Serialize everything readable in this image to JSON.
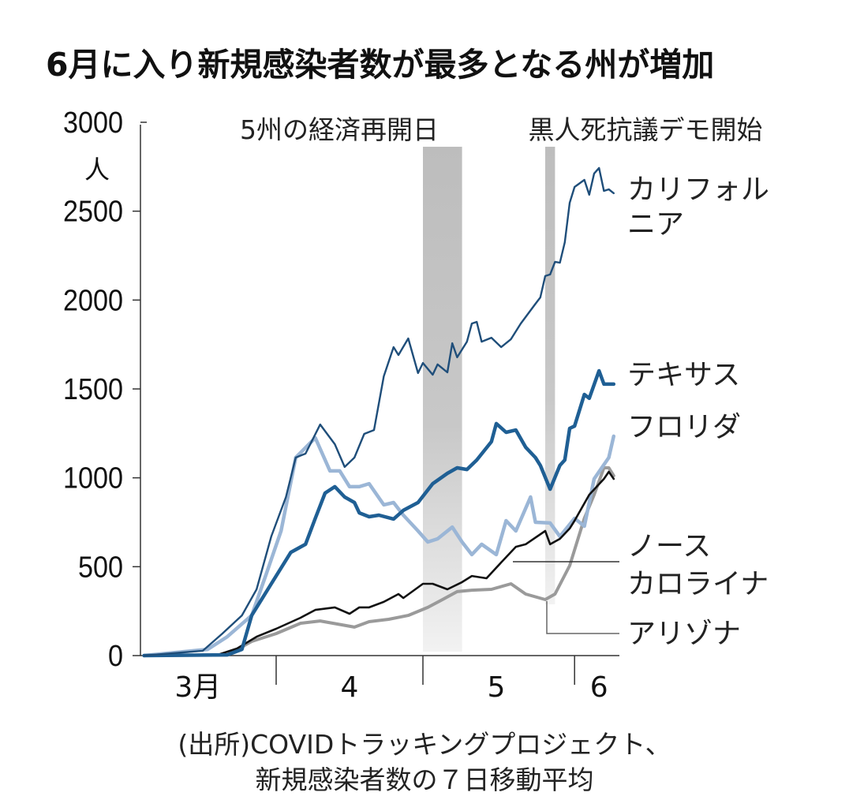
{
  "chart_data": {
    "type": "line",
    "title": "6月に入り新規感染者数が最多となる州が増加",
    "ylabel": "人",
    "ylim": [
      0,
      3000
    ],
    "yticks": [
      "0",
      "500",
      "1000",
      "1500",
      "2000",
      "2500",
      "3000"
    ],
    "yunit": "人",
    "xlim": [
      "2020-03-04",
      "2020-06-10"
    ],
    "xticks": [
      {
        "label": "3月",
        "date": "2020-03-16"
      },
      {
        "label": "4",
        "date": "2020-04-16"
      },
      {
        "label": "5",
        "date": "2020-05-16"
      },
      {
        "label": "6",
        "date": "2020-06-06"
      }
    ],
    "month_boundaries": [
      "2020-04-01",
      "2020-05-01",
      "2020-06-01"
    ],
    "grid": false,
    "annotations": [
      {
        "label": "5州の経済再開日",
        "start": "2020-05-01",
        "end": "2020-05-08"
      },
      {
        "label": "黒人死抗議デモ開始",
        "start": "2020-05-26",
        "end": "2020-05-27"
      }
    ],
    "series": [
      {
        "name": "カリフォルニア",
        "label_lines": [
          "カリフォル",
          "ニア"
        ],
        "color": "#1f4e7a",
        "points": [
          [
            "2020-03-05",
            0
          ],
          [
            "2020-03-17",
            27
          ],
          [
            "2020-03-21",
            124
          ],
          [
            "2020-03-25",
            226
          ],
          [
            "2020-03-28",
            373
          ],
          [
            "2020-03-31",
            670
          ],
          [
            "2020-04-03",
            892
          ],
          [
            "2020-04-05",
            1114
          ],
          [
            "2020-04-07",
            1136
          ],
          [
            "2020-04-10",
            1300
          ],
          [
            "2020-04-13",
            1189
          ],
          [
            "2020-04-15",
            1061
          ],
          [
            "2020-04-17",
            1114
          ],
          [
            "2020-04-19",
            1247
          ],
          [
            "2020-04-21",
            1269
          ],
          [
            "2020-04-23",
            1571
          ],
          [
            "2020-04-25",
            1735
          ],
          [
            "2020-04-26",
            1691
          ],
          [
            "2020-04-28",
            1784
          ],
          [
            "2020-04-30",
            1589
          ],
          [
            "2020-05-01",
            1646
          ],
          [
            "2020-05-03",
            1580
          ],
          [
            "2020-05-04",
            1638
          ],
          [
            "2020-05-06",
            1593
          ],
          [
            "2020-05-07",
            1757
          ],
          [
            "2020-05-08",
            1678
          ],
          [
            "2020-05-10",
            1766
          ],
          [
            "2020-05-11",
            1868
          ],
          [
            "2020-05-12",
            1877
          ],
          [
            "2020-05-13",
            1766
          ],
          [
            "2020-05-15",
            1788
          ],
          [
            "2020-05-17",
            1735
          ],
          [
            "2020-05-19",
            1780
          ],
          [
            "2020-05-21",
            1868
          ],
          [
            "2020-05-24",
            1979
          ],
          [
            "2020-05-25",
            2015
          ],
          [
            "2020-05-26",
            2135
          ],
          [
            "2020-05-27",
            2144
          ],
          [
            "2020-05-28",
            2215
          ],
          [
            "2020-05-29",
            2210
          ],
          [
            "2020-05-30",
            2325
          ],
          [
            "2020-05-31",
            2547
          ],
          [
            "2020-06-01",
            2636
          ],
          [
            "2020-06-03",
            2676
          ],
          [
            "2020-06-04",
            2592
          ],
          [
            "2020-06-05",
            2712
          ],
          [
            "2020-06-06",
            2743
          ],
          [
            "2020-06-07",
            2614
          ],
          [
            "2020-06-08",
            2623
          ],
          [
            "2020-06-09",
            2601
          ]
        ]
      },
      {
        "name": "テキサス",
        "label_lines": [
          "テキサス"
        ],
        "color": "#1f5f94",
        "points": [
          [
            "2020-03-05",
            0
          ],
          [
            "2020-03-22",
            4
          ],
          [
            "2020-03-25",
            35
          ],
          [
            "2020-03-27",
            226
          ],
          [
            "2020-03-31",
            404
          ],
          [
            "2020-04-04",
            581
          ],
          [
            "2020-04-07",
            626
          ],
          [
            "2020-04-09",
            772
          ],
          [
            "2020-04-11",
            914
          ],
          [
            "2020-04-13",
            950
          ],
          [
            "2020-04-15",
            892
          ],
          [
            "2020-04-17",
            861
          ],
          [
            "2020-04-18",
            803
          ],
          [
            "2020-04-20",
            781
          ],
          [
            "2020-04-22",
            790
          ],
          [
            "2020-04-25",
            768
          ],
          [
            "2020-04-27",
            817
          ],
          [
            "2020-04-30",
            861
          ],
          [
            "2020-05-03",
            967
          ],
          [
            "2020-05-06",
            1025
          ],
          [
            "2020-05-08",
            1056
          ],
          [
            "2020-05-10",
            1047
          ],
          [
            "2020-05-12",
            1100
          ],
          [
            "2020-05-15",
            1203
          ],
          [
            "2020-05-16",
            1305
          ],
          [
            "2020-05-18",
            1256
          ],
          [
            "2020-05-20",
            1269
          ],
          [
            "2020-05-22",
            1172
          ],
          [
            "2020-05-24",
            1114
          ],
          [
            "2020-05-25",
            1070
          ],
          [
            "2020-05-27",
            936
          ],
          [
            "2020-05-29",
            1070
          ],
          [
            "2020-05-30",
            1100
          ],
          [
            "2020-05-31",
            1278
          ],
          [
            "2020-06-01",
            1291
          ],
          [
            "2020-06-03",
            1469
          ],
          [
            "2020-06-04",
            1447
          ],
          [
            "2020-06-06",
            1602
          ],
          [
            "2020-06-07",
            1527
          ],
          [
            "2020-06-09",
            1527
          ]
        ]
      },
      {
        "name": "フロリダ",
        "label_lines": [
          "フロリダ"
        ],
        "color": "#9bb6d6",
        "points": [
          [
            "2020-03-05",
            0
          ],
          [
            "2020-03-18",
            35
          ],
          [
            "2020-03-22",
            106
          ],
          [
            "2020-03-27",
            226
          ],
          [
            "2020-03-30",
            461
          ],
          [
            "2020-04-02",
            701
          ],
          [
            "2020-04-05",
            1114
          ],
          [
            "2020-04-09",
            1225
          ],
          [
            "2020-04-12",
            1039
          ],
          [
            "2020-04-14",
            1039
          ],
          [
            "2020-04-16",
            950
          ],
          [
            "2020-04-18",
            950
          ],
          [
            "2020-04-20",
            967
          ],
          [
            "2020-04-23",
            848
          ],
          [
            "2020-04-25",
            861
          ],
          [
            "2020-04-27",
            790
          ],
          [
            "2020-04-30",
            701
          ],
          [
            "2020-05-02",
            639
          ],
          [
            "2020-05-04",
            657
          ],
          [
            "2020-05-07",
            723
          ],
          [
            "2020-05-09",
            639
          ],
          [
            "2020-05-11",
            568
          ],
          [
            "2020-05-13",
            626
          ],
          [
            "2020-05-16",
            568
          ],
          [
            "2020-05-18",
            759
          ],
          [
            "2020-05-20",
            701
          ],
          [
            "2020-05-23",
            892
          ],
          [
            "2020-05-24",
            750
          ],
          [
            "2020-05-27",
            746
          ],
          [
            "2020-05-29",
            670
          ],
          [
            "2020-06-01",
            772
          ],
          [
            "2020-06-03",
            728
          ],
          [
            "2020-06-05",
            994
          ],
          [
            "2020-06-08",
            1114
          ],
          [
            "2020-06-09",
            1234
          ]
        ]
      },
      {
        "name": "ノースカロライナ",
        "label_lines": [
          "ノース",
          "カロライナ"
        ],
        "color": "#111111",
        "points": [
          [
            "2020-03-05",
            0
          ],
          [
            "2020-03-20",
            4
          ],
          [
            "2020-03-24",
            40
          ],
          [
            "2020-03-28",
            106
          ],
          [
            "2020-04-01",
            151
          ],
          [
            "2020-04-06",
            213
          ],
          [
            "2020-04-09",
            257
          ],
          [
            "2020-04-13",
            271
          ],
          [
            "2020-04-16",
            235
          ],
          [
            "2020-04-18",
            271
          ],
          [
            "2020-04-20",
            271
          ],
          [
            "2020-04-23",
            302
          ],
          [
            "2020-04-26",
            346
          ],
          [
            "2020-04-27",
            324
          ],
          [
            "2020-05-01",
            404
          ],
          [
            "2020-05-03",
            404
          ],
          [
            "2020-05-06",
            373
          ],
          [
            "2020-05-09",
            413
          ],
          [
            "2020-05-11",
            448
          ],
          [
            "2020-05-14",
            435
          ],
          [
            "2020-05-17",
            524
          ],
          [
            "2020-05-20",
            612
          ],
          [
            "2020-05-22",
            626
          ],
          [
            "2020-05-26",
            701
          ],
          [
            "2020-05-27",
            626
          ],
          [
            "2020-05-29",
            657
          ],
          [
            "2020-05-31",
            715
          ],
          [
            "2020-06-01",
            759
          ],
          [
            "2020-06-04",
            905
          ],
          [
            "2020-06-07",
            994
          ],
          [
            "2020-06-08",
            1034
          ],
          [
            "2020-06-09",
            994
          ]
        ]
      },
      {
        "name": "アリゾナ",
        "label_lines": [
          "アリゾナ"
        ],
        "color": "#9a9a9a",
        "points": [
          [
            "2020-03-05",
            0
          ],
          [
            "2020-03-22",
            4
          ],
          [
            "2020-03-27",
            80
          ],
          [
            "2020-04-01",
            124
          ],
          [
            "2020-04-06",
            182
          ],
          [
            "2020-04-10",
            195
          ],
          [
            "2020-04-17",
            160
          ],
          [
            "2020-04-20",
            191
          ],
          [
            "2020-04-24",
            204
          ],
          [
            "2020-04-28",
            226
          ],
          [
            "2020-05-02",
            271
          ],
          [
            "2020-05-05",
            315
          ],
          [
            "2020-05-08",
            360
          ],
          [
            "2020-05-11",
            368
          ],
          [
            "2020-05-15",
            373
          ],
          [
            "2020-05-19",
            404
          ],
          [
            "2020-05-22",
            346
          ],
          [
            "2020-05-26",
            315
          ],
          [
            "2020-05-28",
            346
          ],
          [
            "2020-05-31",
            506
          ],
          [
            "2020-06-03",
            772
          ],
          [
            "2020-06-05",
            905
          ],
          [
            "2020-06-07",
            1056
          ],
          [
            "2020-06-08",
            1056
          ],
          [
            "2020-06-09",
            1012
          ]
        ]
      }
    ],
    "source": [
      "(出所)COVIDトラッキングプロジェクト、",
      "新規感染者数の７日移動平均"
    ]
  }
}
